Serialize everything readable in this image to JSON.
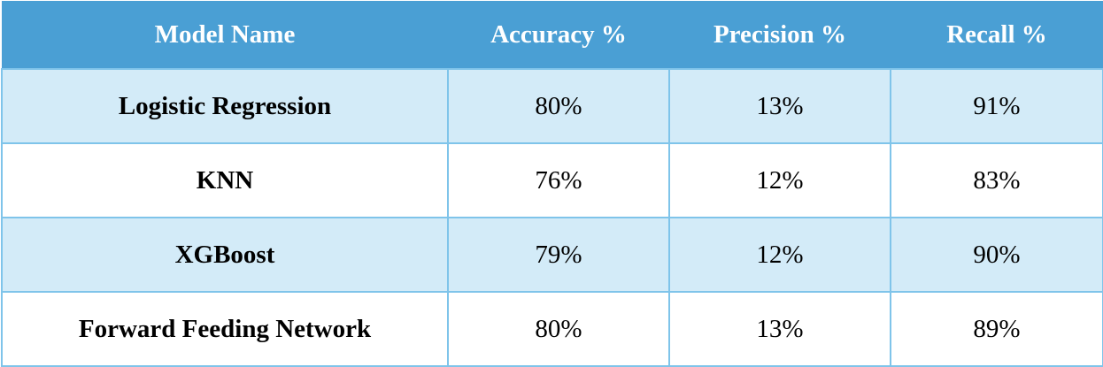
{
  "table": {
    "headers": [
      "Model Name",
      "Accuracy %",
      "Precision %",
      "Recall %"
    ],
    "rows": [
      {
        "model": "Logistic Regression",
        "accuracy": "80%",
        "precision": "13%",
        "recall": "91%"
      },
      {
        "model": "KNN",
        "accuracy": "76%",
        "precision": "12%",
        "recall": "83%"
      },
      {
        "model": "XGBoost",
        "accuracy": "79%",
        "precision": "12%",
        "recall": "90%"
      },
      {
        "model": "Forward Feeding Network",
        "accuracy": "80%",
        "precision": "13%",
        "recall": "89%"
      }
    ]
  },
  "colors": {
    "header_bg": "#4a9fd4",
    "row_shaded_bg": "#d3ebf8",
    "row_plain_bg": "#ffffff",
    "border": "#7fc4ea",
    "header_text": "#ffffff",
    "body_text": "#000000"
  }
}
